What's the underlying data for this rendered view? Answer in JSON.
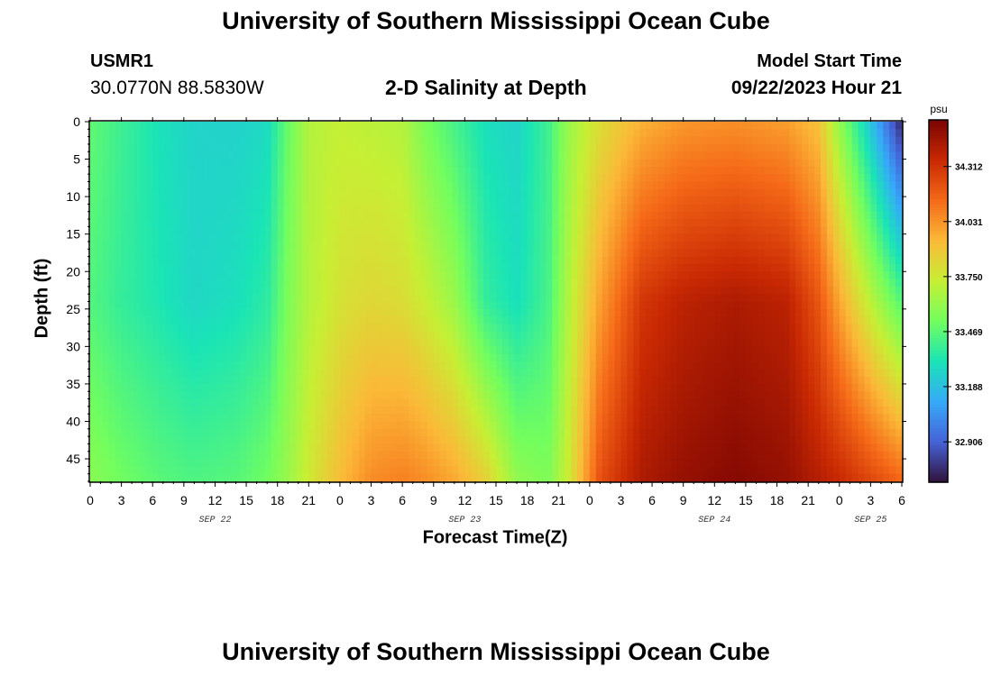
{
  "header": {
    "title": "University of Southern Mississippi Ocean Cube",
    "station": "USMR1",
    "coords": "30.0770N  88.5830W",
    "subtitle": "2-D Salinity at Depth",
    "model_start_label": "Model Start Time",
    "model_start_value": "09/22/2023 Hour 21"
  },
  "footer": {
    "title": "University of Southern Mississippi Ocean Cube"
  },
  "chart_data": {
    "type": "heatmap",
    "title": "2-D Salinity at Depth",
    "xlabel": "Forecast Time(Z)",
    "ylabel": "Depth (ft)",
    "units": "psu",
    "x_range_hours": [
      0,
      78
    ],
    "x_ticks": [
      "0",
      "3",
      "6",
      "9",
      "12",
      "15",
      "18",
      "21",
      "0",
      "3",
      "6",
      "9",
      "12",
      "15",
      "18",
      "21",
      "0",
      "3",
      "6",
      "9",
      "12",
      "15",
      "18",
      "21",
      "0",
      "3",
      "6"
    ],
    "date_labels": [
      {
        "label": "SEP 22",
        "hour": 12
      },
      {
        "label": "SEP 23",
        "hour": 36
      },
      {
        "label": "SEP 24",
        "hour": 60
      },
      {
        "label": "SEP 25",
        "hour": 75
      }
    ],
    "y_range_ft": [
      0,
      48
    ],
    "y_ticks": [
      0,
      5,
      10,
      15,
      20,
      25,
      30,
      35,
      40,
      45
    ],
    "colorbar_ticks": [
      34.312,
      34.031,
      33.75,
      33.469,
      33.188,
      32.906
    ],
    "colorbar_range": [
      32.7,
      34.55
    ],
    "colormap": [
      "#30123b",
      "#4662d7",
      "#36aaf9",
      "#1ae4b6",
      "#72fe5e",
      "#c7ef34",
      "#fbb938",
      "#f56918",
      "#c92903",
      "#7a0403"
    ],
    "profile_columns": [
      {
        "hour": 0,
        "depth_ft": [
          0,
          24,
          48
        ],
        "salinity": [
          33.48,
          33.45,
          33.58
        ]
      },
      {
        "hour": 3,
        "depth_ft": [
          0,
          24,
          48
        ],
        "salinity": [
          33.4,
          33.38,
          33.52
        ]
      },
      {
        "hour": 7,
        "depth_ft": [
          0,
          24,
          48
        ],
        "salinity": [
          33.3,
          33.32,
          33.46
        ]
      },
      {
        "hour": 10,
        "depth_ft": [
          0,
          24,
          48
        ],
        "salinity": [
          33.26,
          33.27,
          33.44
        ]
      },
      {
        "hour": 14,
        "depth_ft": [
          0,
          24,
          48
        ],
        "salinity": [
          33.25,
          33.3,
          33.46
        ]
      },
      {
        "hour": 17,
        "depth_ft": [
          0,
          24,
          48
        ],
        "salinity": [
          33.28,
          33.36,
          33.52
        ]
      },
      {
        "hour": 19,
        "depth_ft": [
          0,
          24,
          48
        ],
        "salinity": [
          33.5,
          33.55,
          33.62
        ]
      },
      {
        "hour": 21,
        "depth_ft": [
          0,
          24,
          48
        ],
        "salinity": [
          33.68,
          33.68,
          33.75
        ]
      },
      {
        "hour": 24,
        "depth_ft": [
          0,
          24,
          48
        ],
        "salinity": [
          33.72,
          33.78,
          33.92
        ]
      },
      {
        "hour": 27,
        "depth_ft": [
          0,
          24,
          48
        ],
        "salinity": [
          33.7,
          33.82,
          34.05
        ]
      },
      {
        "hour": 30,
        "depth_ft": [
          0,
          24,
          48
        ],
        "salinity": [
          33.68,
          33.8,
          34.08
        ]
      },
      {
        "hour": 32,
        "depth_ft": [
          0,
          24,
          48
        ],
        "salinity": [
          33.55,
          33.74,
          34.05
        ]
      },
      {
        "hour": 35,
        "depth_ft": [
          0,
          24,
          48
        ],
        "salinity": [
          33.42,
          33.62,
          33.98
        ]
      },
      {
        "hour": 38,
        "depth_ft": [
          0,
          24,
          48
        ],
        "salinity": [
          33.3,
          33.38,
          33.85
        ]
      },
      {
        "hour": 41,
        "depth_ft": [
          0,
          24,
          48
        ],
        "salinity": [
          33.26,
          33.3,
          33.6
        ]
      },
      {
        "hour": 44,
        "depth_ft": [
          0,
          24,
          48
        ],
        "salinity": [
          33.4,
          33.42,
          33.55
        ]
      },
      {
        "hour": 46,
        "depth_ft": [
          0,
          24,
          48
        ],
        "salinity": [
          33.62,
          33.68,
          33.75
        ]
      },
      {
        "hour": 49,
        "depth_ft": [
          0,
          24,
          48
        ],
        "salinity": [
          33.8,
          34.0,
          34.22
        ]
      },
      {
        "hour": 53,
        "depth_ft": [
          0,
          24,
          48
        ],
        "salinity": [
          33.95,
          34.3,
          34.42
        ]
      },
      {
        "hour": 57,
        "depth_ft": [
          0,
          24,
          48
        ],
        "salinity": [
          34.02,
          34.38,
          34.48
        ]
      },
      {
        "hour": 62,
        "depth_ft": [
          0,
          24,
          48
        ],
        "salinity": [
          34.04,
          34.42,
          34.52
        ]
      },
      {
        "hour": 67,
        "depth_ft": [
          0,
          24,
          48
        ],
        "salinity": [
          34.0,
          34.38,
          34.48
        ]
      },
      {
        "hour": 70,
        "depth_ft": [
          0,
          24,
          48
        ],
        "salinity": [
          33.9,
          34.2,
          34.4
        ]
      },
      {
        "hour": 72,
        "depth_ft": [
          0,
          24,
          48
        ],
        "salinity": [
          33.6,
          33.98,
          34.35
        ]
      },
      {
        "hour": 75,
        "depth_ft": [
          0,
          24,
          48
        ],
        "salinity": [
          33.2,
          33.7,
          34.25
        ]
      },
      {
        "hour": 78,
        "depth_ft": [
          0,
          24,
          48
        ],
        "salinity": [
          32.75,
          33.45,
          34.15
        ]
      }
    ]
  }
}
